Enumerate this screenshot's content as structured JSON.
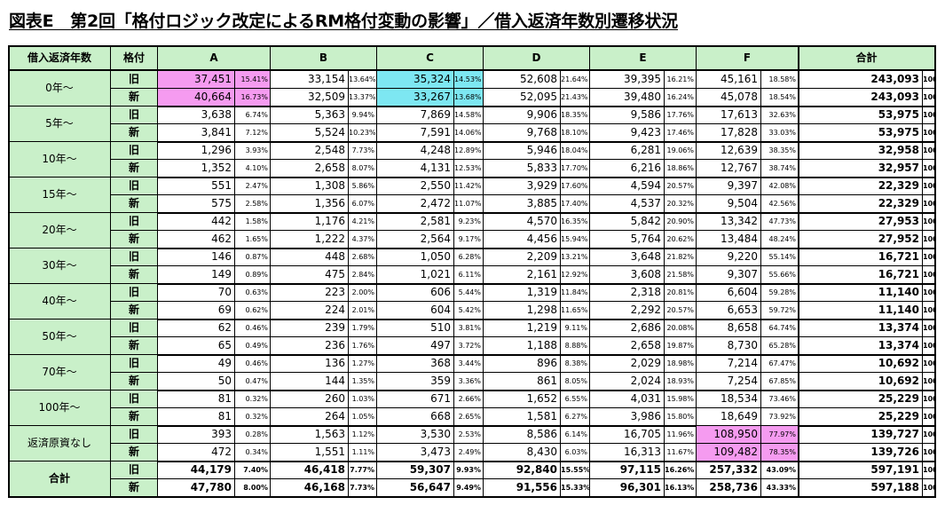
{
  "title": "図表E　第2回「格付ロジック改定によるRM格付変動の影響」／借入返済年数別遷移状況",
  "headers": {
    "years": "借入返済年数",
    "rating": "格付",
    "cols": [
      "A",
      "B",
      "C",
      "D",
      "E",
      "F"
    ],
    "total": "合計"
  },
  "kinds": [
    "旧",
    "新"
  ],
  "groups": [
    {
      "label": "0年～",
      "rows": [
        {
          "vals": [
            [
              "37,451",
              "15.41%"
            ],
            [
              "33,154",
              "13.64%"
            ],
            [
              "35,324",
              "14.53%"
            ],
            [
              "52,608",
              "21.64%"
            ],
            [
              "39,395",
              "16.21%"
            ],
            [
              "45,161",
              "18.58%"
            ]
          ],
          "total": [
            "243,093",
            "100%"
          ]
        },
        {
          "vals": [
            [
              "40,664",
              "16.73%"
            ],
            [
              "32,509",
              "13.37%"
            ],
            [
              "33,267",
              "13.68%"
            ],
            [
              "52,095",
              "21.43%"
            ],
            [
              "39,480",
              "16.24%"
            ],
            [
              "45,078",
              "18.54%"
            ]
          ],
          "total": [
            "243,093",
            "100%"
          ]
        }
      ]
    },
    {
      "label": "5年～",
      "rows": [
        {
          "vals": [
            [
              "3,638",
              "6.74%"
            ],
            [
              "5,363",
              "9.94%"
            ],
            [
              "7,869",
              "14.58%"
            ],
            [
              "9,906",
              "18.35%"
            ],
            [
              "9,586",
              "17.76%"
            ],
            [
              "17,613",
              "32.63%"
            ]
          ],
          "total": [
            "53,975",
            "100%"
          ]
        },
        {
          "vals": [
            [
              "3,841",
              "7.12%"
            ],
            [
              "5,524",
              "10.23%"
            ],
            [
              "7,591",
              "14.06%"
            ],
            [
              "9,768",
              "18.10%"
            ],
            [
              "9,423",
              "17.46%"
            ],
            [
              "17,828",
              "33.03%"
            ]
          ],
          "total": [
            "53,975",
            "100%"
          ]
        }
      ]
    },
    {
      "label": "10年～",
      "rows": [
        {
          "vals": [
            [
              "1,296",
              "3.93%"
            ],
            [
              "2,548",
              "7.73%"
            ],
            [
              "4,248",
              "12.89%"
            ],
            [
              "5,946",
              "18.04%"
            ],
            [
              "6,281",
              "19.06%"
            ],
            [
              "12,639",
              "38.35%"
            ]
          ],
          "total": [
            "32,958",
            "100%"
          ]
        },
        {
          "vals": [
            [
              "1,352",
              "4.10%"
            ],
            [
              "2,658",
              "8.07%"
            ],
            [
              "4,131",
              "12.53%"
            ],
            [
              "5,833",
              "17.70%"
            ],
            [
              "6,216",
              "18.86%"
            ],
            [
              "12,767",
              "38.74%"
            ]
          ],
          "total": [
            "32,957",
            "100%"
          ]
        }
      ]
    },
    {
      "label": "15年～",
      "rows": [
        {
          "vals": [
            [
              "551",
              "2.47%"
            ],
            [
              "1,308",
              "5.86%"
            ],
            [
              "2,550",
              "11.42%"
            ],
            [
              "3,929",
              "17.60%"
            ],
            [
              "4,594",
              "20.57%"
            ],
            [
              "9,397",
              "42.08%"
            ]
          ],
          "total": [
            "22,329",
            "100%"
          ]
        },
        {
          "vals": [
            [
              "575",
              "2.58%"
            ],
            [
              "1,356",
              "6.07%"
            ],
            [
              "2,472",
              "11.07%"
            ],
            [
              "3,885",
              "17.40%"
            ],
            [
              "4,537",
              "20.32%"
            ],
            [
              "9,504",
              "42.56%"
            ]
          ],
          "total": [
            "22,329",
            "100%"
          ]
        }
      ]
    },
    {
      "label": "20年～",
      "rows": [
        {
          "vals": [
            [
              "442",
              "1.58%"
            ],
            [
              "1,176",
              "4.21%"
            ],
            [
              "2,581",
              "9.23%"
            ],
            [
              "4,570",
              "16.35%"
            ],
            [
              "5,842",
              "20.90%"
            ],
            [
              "13,342",
              "47.73%"
            ]
          ],
          "total": [
            "27,953",
            "100%"
          ]
        },
        {
          "vals": [
            [
              "462",
              "1.65%"
            ],
            [
              "1,222",
              "4.37%"
            ],
            [
              "2,564",
              "9.17%"
            ],
            [
              "4,456",
              "15.94%"
            ],
            [
              "5,764",
              "20.62%"
            ],
            [
              "13,484",
              "48.24%"
            ]
          ],
          "total": [
            "27,952",
            "100%"
          ]
        }
      ]
    },
    {
      "label": "30年～",
      "rows": [
        {
          "vals": [
            [
              "146",
              "0.87%"
            ],
            [
              "448",
              "2.68%"
            ],
            [
              "1,050",
              "6.28%"
            ],
            [
              "2,209",
              "13.21%"
            ],
            [
              "3,648",
              "21.82%"
            ],
            [
              "9,220",
              "55.14%"
            ]
          ],
          "total": [
            "16,721",
            "100%"
          ]
        },
        {
          "vals": [
            [
              "149",
              "0.89%"
            ],
            [
              "475",
              "2.84%"
            ],
            [
              "1,021",
              "6.11%"
            ],
            [
              "2,161",
              "12.92%"
            ],
            [
              "3,608",
              "21.58%"
            ],
            [
              "9,307",
              "55.66%"
            ]
          ],
          "total": [
            "16,721",
            "100%"
          ]
        }
      ]
    },
    {
      "label": "40年～",
      "rows": [
        {
          "vals": [
            [
              "70",
              "0.63%"
            ],
            [
              "223",
              "2.00%"
            ],
            [
              "606",
              "5.44%"
            ],
            [
              "1,319",
              "11.84%"
            ],
            [
              "2,318",
              "20.81%"
            ],
            [
              "6,604",
              "59.28%"
            ]
          ],
          "total": [
            "11,140",
            "100%"
          ]
        },
        {
          "vals": [
            [
              "69",
              "0.62%"
            ],
            [
              "224",
              "2.01%"
            ],
            [
              "604",
              "5.42%"
            ],
            [
              "1,298",
              "11.65%"
            ],
            [
              "2,292",
              "20.57%"
            ],
            [
              "6,653",
              "59.72%"
            ]
          ],
          "total": [
            "11,140",
            "100%"
          ]
        }
      ]
    },
    {
      "label": "50年～",
      "rows": [
        {
          "vals": [
            [
              "62",
              "0.46%"
            ],
            [
              "239",
              "1.79%"
            ],
            [
              "510",
              "3.81%"
            ],
            [
              "1,219",
              "9.11%"
            ],
            [
              "2,686",
              "20.08%"
            ],
            [
              "8,658",
              "64.74%"
            ]
          ],
          "total": [
            "13,374",
            "100%"
          ]
        },
        {
          "vals": [
            [
              "65",
              "0.49%"
            ],
            [
              "236",
              "1.76%"
            ],
            [
              "497",
              "3.72%"
            ],
            [
              "1,188",
              "8.88%"
            ],
            [
              "2,658",
              "19.87%"
            ],
            [
              "8,730",
              "65.28%"
            ]
          ],
          "total": [
            "13,374",
            "100%"
          ]
        }
      ]
    },
    {
      "label": "70年～",
      "rows": [
        {
          "vals": [
            [
              "49",
              "0.46%"
            ],
            [
              "136",
              "1.27%"
            ],
            [
              "368",
              "3.44%"
            ],
            [
              "896",
              "8.38%"
            ],
            [
              "2,029",
              "18.98%"
            ],
            [
              "7,214",
              "67.47%"
            ]
          ],
          "total": [
            "10,692",
            "100%"
          ]
        },
        {
          "vals": [
            [
              "50",
              "0.47%"
            ],
            [
              "144",
              "1.35%"
            ],
            [
              "359",
              "3.36%"
            ],
            [
              "861",
              "8.05%"
            ],
            [
              "2,024",
              "18.93%"
            ],
            [
              "7,254",
              "67.85%"
            ]
          ],
          "total": [
            "10,692",
            "100%"
          ]
        }
      ]
    },
    {
      "label": "100年～",
      "rows": [
        {
          "vals": [
            [
              "81",
              "0.32%"
            ],
            [
              "260",
              "1.03%"
            ],
            [
              "671",
              "2.66%"
            ],
            [
              "1,652",
              "6.55%"
            ],
            [
              "4,031",
              "15.98%"
            ],
            [
              "18,534",
              "73.46%"
            ]
          ],
          "total": [
            "25,229",
            "100%"
          ]
        },
        {
          "vals": [
            [
              "81",
              "0.32%"
            ],
            [
              "264",
              "1.05%"
            ],
            [
              "668",
              "2.65%"
            ],
            [
              "1,581",
              "6.27%"
            ],
            [
              "3,986",
              "15.80%"
            ],
            [
              "18,649",
              "73.92%"
            ]
          ],
          "total": [
            "25,229",
            "100%"
          ]
        }
      ]
    },
    {
      "label": "返済原資なし",
      "rows": [
        {
          "vals": [
            [
              "393",
              "0.28%"
            ],
            [
              "1,563",
              "1.12%"
            ],
            [
              "3,530",
              "2.53%"
            ],
            [
              "8,586",
              "6.14%"
            ],
            [
              "16,705",
              "11.96%"
            ],
            [
              "108,950",
              "77.97%"
            ]
          ],
          "total": [
            "139,727",
            "100%"
          ]
        },
        {
          "vals": [
            [
              "472",
              "0.34%"
            ],
            [
              "1,551",
              "1.11%"
            ],
            [
              "3,473",
              "2.49%"
            ],
            [
              "8,430",
              "6.03%"
            ],
            [
              "16,313",
              "11.67%"
            ],
            [
              "109,482",
              "78.35%"
            ]
          ],
          "total": [
            "139,726",
            "100%"
          ]
        }
      ]
    },
    {
      "label": "合計",
      "bold": true,
      "rows": [
        {
          "vals": [
            [
              "44,179",
              "7.40%"
            ],
            [
              "46,418",
              "7.77%"
            ],
            [
              "59,307",
              "9.93%"
            ],
            [
              "92,840",
              "15.55%"
            ],
            [
              "97,115",
              "16.26%"
            ],
            [
              "257,332",
              "43.09%"
            ]
          ],
          "total": [
            "597,191",
            "100%"
          ]
        },
        {
          "vals": [
            [
              "47,780",
              "8.00%"
            ],
            [
              "46,168",
              "7.73%"
            ],
            [
              "56,647",
              "9.49%"
            ],
            [
              "91,556",
              "15.33%"
            ],
            [
              "96,301",
              "16.13%"
            ],
            [
              "258,736",
              "43.33%"
            ]
          ],
          "total": [
            "597,188",
            "100%"
          ]
        }
      ]
    }
  ],
  "highlights": [
    {
      "group": 0,
      "row": 0,
      "col": 0,
      "color": "#f59bf0"
    },
    {
      "group": 0,
      "row": 1,
      "col": 0,
      "color": "#f59bf0"
    },
    {
      "group": 0,
      "row": 0,
      "col": 2,
      "color": "#7de7f2"
    },
    {
      "group": 0,
      "row": 1,
      "col": 2,
      "color": "#7de7f2"
    },
    {
      "group": 10,
      "row": 0,
      "col": 5,
      "color": "#f59bf0"
    },
    {
      "group": 10,
      "row": 1,
      "col": 5,
      "color": "#f59bf0"
    }
  ]
}
